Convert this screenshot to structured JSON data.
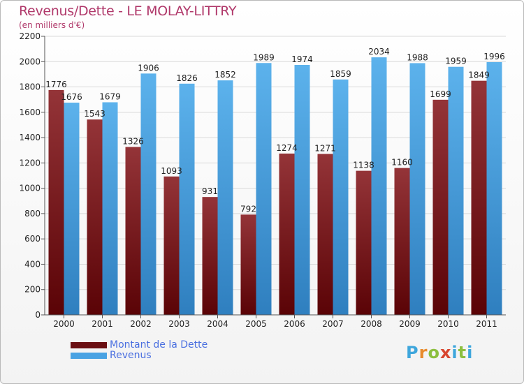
{
  "header": {
    "title": "Revenus/Dette - LE MOLAY-LITTRY",
    "subtitle": "(en milliers d'€)"
  },
  "legend": {
    "items": [
      {
        "label": "Montant de la Dette",
        "color": "#6b0f12"
      },
      {
        "label": "Revenus",
        "color": "#4aa3e3"
      }
    ]
  },
  "logo": {
    "text": "Proxiti"
  },
  "colors": {
    "dette_top": "#943438",
    "dette_bottom": "#5a0306",
    "revenus_top": "#5cb2ec",
    "revenus_bottom": "#2f7fbf",
    "title": "#b0386a",
    "legend_text": "#4a6fe0"
  },
  "chart_data": {
    "type": "bar",
    "title": "Revenus/Dette - LE MOLAY-LITTRY",
    "subtitle": "(en milliers d'€)",
    "categories": [
      "2000",
      "2001",
      "2002",
      "2003",
      "2004",
      "2005",
      "2006",
      "2007",
      "2008",
      "2009",
      "2010",
      "2011"
    ],
    "series": [
      {
        "name": "Montant de la Dette",
        "values": [
          1776,
          1543,
          1326,
          1093,
          931,
          792,
          1274,
          1271,
          1138,
          1160,
          1699,
          1849
        ]
      },
      {
        "name": "Revenus",
        "values": [
          1676,
          1679,
          1906,
          1826,
          1852,
          1989,
          1974,
          1859,
          2034,
          1988,
          1959,
          1996
        ]
      }
    ],
    "ylim": [
      0,
      2200
    ],
    "yticks": [
      0,
      200,
      400,
      600,
      800,
      1000,
      1200,
      1400,
      1600,
      1800,
      2000,
      2200
    ],
    "grid": true,
    "legend_position": "bottom-left"
  }
}
